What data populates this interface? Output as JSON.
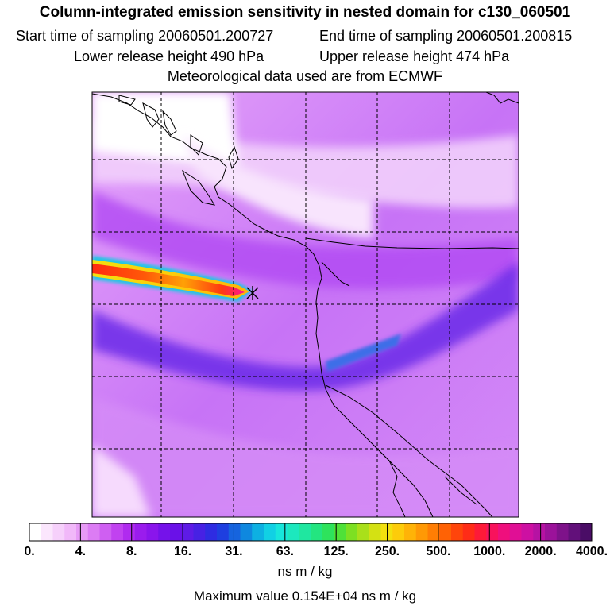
{
  "header": {
    "title": "Column-integrated emission sensitivity in nested domain for c130_060501",
    "start_label": "Start time of sampling",
    "start_value": "20060501.200727",
    "end_label": "End time of sampling",
    "end_value": "20060501.200815",
    "lower_label": "Lower release height",
    "lower_value": "490 hPa",
    "upper_label": "Upper release height",
    "upper_value": "474 hPa",
    "met_line": "Meteorological data used are from ECMWF"
  },
  "map": {
    "release_marker": "release-point-cross-icon",
    "colors": {
      "background_low": "#f4d6ff",
      "mid": "#b040ff",
      "high": "#5a18e6",
      "plume_core": "#ff1493"
    }
  },
  "colorbar": {
    "tick_labels": [
      "0.",
      "4.",
      "8.",
      "16.",
      "31.",
      "63.",
      "125.",
      "250.",
      "500.",
      "1000.",
      "2000.",
      "4000."
    ],
    "colors": [
      "#ffffff",
      "#fbe6fd",
      "#f6d0fb",
      "#f1b8f9",
      "#e79af6",
      "#dc7cf4",
      "#cf5ff2",
      "#c142f0",
      "#b02bef",
      "#9a1ced",
      "#8a15ec",
      "#7512ea",
      "#6a11e8",
      "#5e1be6",
      "#4721e4",
      "#2e2ce2",
      "#1e3fe0",
      "#1664de",
      "#0f88df",
      "#0db0e2",
      "#11d0e4",
      "#17e6db",
      "#1ce8be",
      "#1fe7a0",
      "#23e580",
      "#2ee35c",
      "#4fe138",
      "#7de022",
      "#a9e01a",
      "#d4e113",
      "#f3e10e",
      "#fdcc0a",
      "#ffb307",
      "#ff9905",
      "#ff7e04",
      "#ff6205",
      "#ff450b",
      "#ff2c17",
      "#fd1a38",
      "#f8125c",
      "#ef0f7d",
      "#e00f95",
      "#cd10a2",
      "#b612a3",
      "#9b129a",
      "#7e128a",
      "#62107a",
      "#4a0d66"
    ],
    "unit": "ns m / kg"
  },
  "footer": {
    "max_label": "Maximum value",
    "max_value": "0.154E+04 ns m / kg"
  }
}
